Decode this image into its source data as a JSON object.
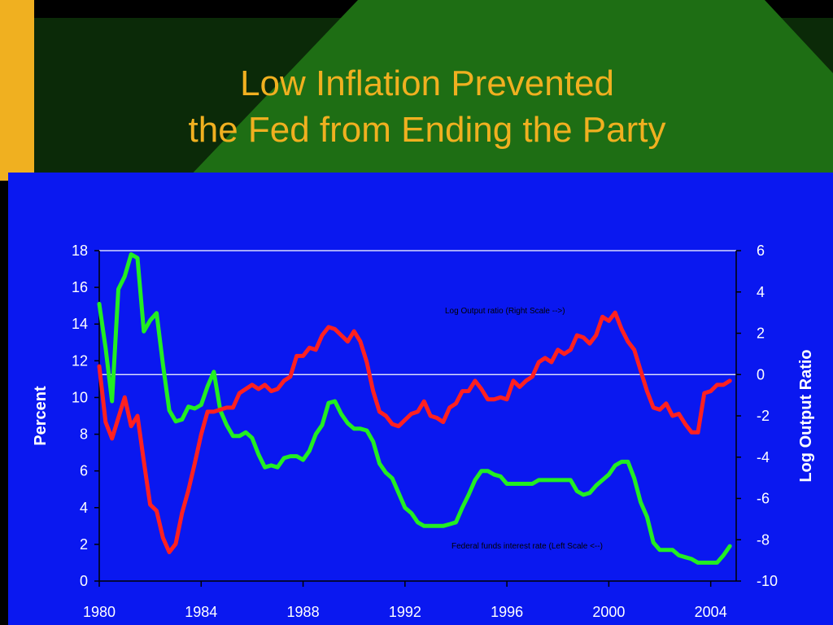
{
  "slide": {
    "title_line1": "Low Inflation Prevented",
    "title_line2": "the Fed from Ending the Party",
    "colors": {
      "background": "#000000",
      "dark_green": "#0b2a08",
      "green_triangle": "#1e6e14",
      "gold_bar": "#f0b020",
      "title": "#f0b020",
      "panel": "#0a18f0"
    }
  },
  "chart_data": {
    "type": "line",
    "title": "",
    "ylabel_left": "Percent",
    "ylabel_right": "Log Output Ratio",
    "xlabel": "",
    "xlim": [
      1980,
      2005
    ],
    "ylim_left": [
      0,
      18
    ],
    "ylim_right": [
      -10,
      6
    ],
    "x_ticks": [
      "1980",
      "1984",
      "1988",
      "1992",
      "1996",
      "2000",
      "2004"
    ],
    "y_left_ticks": [
      "0",
      "2",
      "4",
      "6",
      "8",
      "10",
      "12",
      "14",
      "16",
      "18"
    ],
    "y_right_ticks": [
      "-10",
      "-8",
      "-6",
      "-4",
      "-2",
      "0",
      "2",
      "4",
      "6"
    ],
    "grid": "horizontal reference lines at left-axis 18 and right-axis 0",
    "annotations": [
      {
        "text": "Log Output ratio (Right Scale -->)",
        "series": "output"
      },
      {
        "text": "Federal funds interest rate (Left Scale <--)",
        "series": "fedfunds"
      }
    ],
    "series": [
      {
        "name": "Federal funds interest rate (Left Scale <--)",
        "axis": "left",
        "color": "#22ee22",
        "x": [
          1980.0,
          1980.25,
          1980.5,
          1980.75,
          1981.0,
          1981.25,
          1981.5,
          1981.75,
          1982.0,
          1982.25,
          1982.5,
          1982.75,
          1983.0,
          1983.25,
          1983.5,
          1983.75,
          1984.0,
          1984.25,
          1984.5,
          1984.75,
          1985.0,
          1985.25,
          1985.5,
          1985.75,
          1986.0,
          1986.25,
          1986.5,
          1986.75,
          1987.0,
          1987.25,
          1987.5,
          1987.75,
          1988.0,
          1988.25,
          1988.5,
          1988.75,
          1989.0,
          1989.25,
          1989.5,
          1989.75,
          1990.0,
          1990.25,
          1990.5,
          1990.75,
          1991.0,
          1991.25,
          1991.5,
          1991.75,
          1992.0,
          1992.25,
          1992.5,
          1992.75,
          1993.0,
          1993.25,
          1993.5,
          1993.75,
          1994.0,
          1994.25,
          1994.5,
          1994.75,
          1995.0,
          1995.25,
          1995.5,
          1995.75,
          1996.0,
          1996.25,
          1996.5,
          1996.75,
          1997.0,
          1997.25,
          1997.5,
          1997.75,
          1998.0,
          1998.25,
          1998.5,
          1998.75,
          1999.0,
          1999.25,
          1999.5,
          1999.75,
          2000.0,
          2000.25,
          2000.5,
          2000.75,
          2001.0,
          2001.25,
          2001.5,
          2001.75,
          2002.0,
          2002.25,
          2002.5,
          2002.75,
          2003.0,
          2003.25,
          2003.5,
          2003.75,
          2004.0,
          2004.25,
          2004.5,
          2004.75
        ],
        "values": [
          15.1,
          12.7,
          9.8,
          15.9,
          16.6,
          17.8,
          17.6,
          13.6,
          14.2,
          14.6,
          11.8,
          9.3,
          8.7,
          8.8,
          9.5,
          9.4,
          9.6,
          10.6,
          11.4,
          9.3,
          8.5,
          7.9,
          7.9,
          8.1,
          7.8,
          6.9,
          6.2,
          6.3,
          6.2,
          6.7,
          6.8,
          6.8,
          6.6,
          7.1,
          8.0,
          8.5,
          9.7,
          9.8,
          9.1,
          8.6,
          8.3,
          8.3,
          8.2,
          7.6,
          6.4,
          5.9,
          5.6,
          4.8,
          4.0,
          3.7,
          3.2,
          3.0,
          3.0,
          3.0,
          3.0,
          3.1,
          3.2,
          4.0,
          4.7,
          5.5,
          6.0,
          6.0,
          5.8,
          5.7,
          5.3,
          5.3,
          5.3,
          5.3,
          5.3,
          5.5,
          5.5,
          5.5,
          5.5,
          5.5,
          5.5,
          4.9,
          4.7,
          4.8,
          5.2,
          5.5,
          5.8,
          6.3,
          6.5,
          6.5,
          5.6,
          4.3,
          3.5,
          2.1,
          1.7,
          1.7,
          1.7,
          1.4,
          1.3,
          1.2,
          1.0,
          1.0,
          1.0,
          1.0,
          1.4,
          1.9
        ]
      },
      {
        "name": "Log Output ratio (Right Scale -->)",
        "axis": "right",
        "color": "#ff2020",
        "x": [
          1980.0,
          1980.25,
          1980.5,
          1980.75,
          1981.0,
          1981.25,
          1981.5,
          1981.75,
          1982.0,
          1982.25,
          1982.5,
          1982.75,
          1983.0,
          1983.25,
          1983.5,
          1983.75,
          1984.0,
          1984.25,
          1984.5,
          1984.75,
          1985.0,
          1985.25,
          1985.5,
          1985.75,
          1986.0,
          1986.25,
          1986.5,
          1986.75,
          1987.0,
          1987.25,
          1987.5,
          1987.75,
          1988.0,
          1988.25,
          1988.5,
          1988.75,
          1989.0,
          1989.25,
          1989.5,
          1989.75,
          1990.0,
          1990.25,
          1990.5,
          1990.75,
          1991.0,
          1991.25,
          1991.5,
          1991.75,
          1992.0,
          1992.25,
          1992.5,
          1992.75,
          1993.0,
          1993.25,
          1993.5,
          1993.75,
          1994.0,
          1994.25,
          1994.5,
          1994.75,
          1995.0,
          1995.25,
          1995.5,
          1995.75,
          1996.0,
          1996.25,
          1996.5,
          1996.75,
          1997.0,
          1997.25,
          1997.5,
          1997.75,
          1998.0,
          1998.25,
          1998.5,
          1998.75,
          1999.0,
          1999.25,
          1999.5,
          1999.75,
          2000.0,
          2000.25,
          2000.5,
          2000.75,
          2001.0,
          2001.25,
          2001.5,
          2001.75,
          2002.0,
          2002.25,
          2002.5,
          2002.75,
          2003.0,
          2003.25,
          2003.5,
          2003.75,
          2004.0,
          2004.25,
          2004.5,
          2004.75
        ],
        "values": [
          0.4,
          -2.3,
          -3.1,
          -2.1,
          -1.1,
          -2.5,
          -2.0,
          -4.2,
          -6.3,
          -6.6,
          -7.9,
          -8.6,
          -8.2,
          -6.7,
          -5.6,
          -4.3,
          -2.9,
          -1.8,
          -1.8,
          -1.7,
          -1.6,
          -1.6,
          -0.9,
          -0.7,
          -0.5,
          -0.7,
          -0.5,
          -0.8,
          -0.7,
          -0.3,
          -0.1,
          0.9,
          0.9,
          1.3,
          1.2,
          1.9,
          2.3,
          2.2,
          1.9,
          1.6,
          2.1,
          1.6,
          0.6,
          -0.8,
          -1.8,
          -2.0,
          -2.4,
          -2.5,
          -2.2,
          -1.9,
          -1.8,
          -1.3,
          -2.0,
          -2.1,
          -2.3,
          -1.6,
          -1.4,
          -0.8,
          -0.8,
          -0.3,
          -0.7,
          -1.2,
          -1.2,
          -1.1,
          -1.2,
          -0.3,
          -0.6,
          -0.3,
          -0.1,
          0.6,
          0.8,
          0.6,
          1.2,
          1.0,
          1.2,
          1.9,
          1.8,
          1.5,
          1.9,
          2.8,
          2.6,
          3.0,
          2.2,
          1.6,
          1.2,
          0.2,
          -0.8,
          -1.6,
          -1.7,
          -1.4,
          -2.0,
          -1.9,
          -2.4,
          -2.8,
          -2.8,
          -0.9,
          -0.8,
          -0.5,
          -0.5,
          -0.3
        ]
      }
    ]
  }
}
